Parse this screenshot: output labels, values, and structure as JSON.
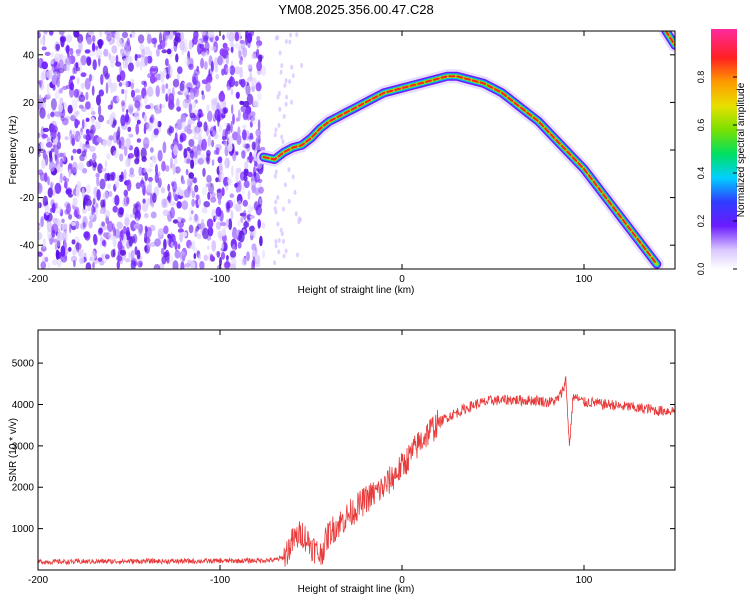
{
  "title": "YM08.2025.356.00.47.C28",
  "chart_data": [
    {
      "type": "heatmap",
      "xlabel": "Height of straight line (km)",
      "ylabel": "Frequency (Hz)",
      "xlim": [
        -200,
        150
      ],
      "ylim": [
        -50,
        50
      ],
      "x_ticks": [
        -200,
        -100,
        0,
        100
      ],
      "y_ticks": [
        -40,
        -20,
        0,
        20,
        40
      ],
      "colorbar": {
        "label": "Normalized spectral amplitude",
        "range": [
          0,
          1
        ],
        "ticks": [
          0.0,
          0.2,
          0.4,
          0.6,
          0.8
        ]
      },
      "noise_region_x": [
        -200,
        -76
      ],
      "ridge": {
        "name": "",
        "x": [
          -76,
          -70,
          -65,
          -60,
          -55,
          -50,
          -45,
          -40,
          -35,
          -30,
          -25,
          -20,
          -15,
          -10,
          -5,
          0,
          5,
          10,
          15,
          20,
          25,
          30,
          35,
          40,
          45,
          50,
          55,
          60,
          65,
          70,
          75,
          80,
          85,
          90,
          95,
          100,
          105,
          110,
          115,
          120,
          125,
          130,
          135,
          140,
          145,
          150
        ],
        "y": [
          -3,
          -4,
          -1,
          1,
          2,
          5,
          9,
          12,
          14,
          16,
          18,
          20,
          22,
          24,
          25,
          26,
          27,
          28,
          29,
          30,
          31,
          31,
          30,
          29,
          28,
          26,
          24,
          21,
          18,
          15,
          12,
          8,
          4,
          0,
          -4,
          -8,
          -13,
          -18,
          -23,
          -28,
          -33,
          -38,
          -43,
          -48,
          50,
          44
        ]
      }
    },
    {
      "type": "line",
      "xlabel": "Height of straight line (km)",
      "ylabel": "SNR (10 * v/v)",
      "xlim": [
        -200,
        150
      ],
      "ylim": [
        0,
        5800
      ],
      "x_ticks": [
        -200,
        -100,
        0,
        100
      ],
      "y_ticks": [
        1000,
        2000,
        3000,
        4000,
        5000
      ],
      "color": "#e83a3a",
      "series": [
        {
          "x": [
            -200,
            -190,
            -180,
            -170,
            -160,
            -150,
            -140,
            -130,
            -120,
            -110,
            -100,
            -90,
            -80,
            -70,
            -65,
            -60,
            -55,
            -50,
            -45,
            -40,
            -35,
            -30,
            -25,
            -20,
            -15,
            -10,
            -5,
            0,
            5,
            10,
            15,
            20,
            25,
            30,
            35,
            40,
            45,
            50,
            55,
            60,
            65,
            70,
            75,
            80,
            85,
            88,
            90,
            92,
            94,
            96,
            100,
            105,
            110,
            115,
            120,
            125,
            130,
            135,
            140,
            145,
            150
          ],
          "y": [
            200,
            200,
            200,
            205,
            210,
            210,
            215,
            210,
            215,
            215,
            220,
            220,
            230,
            240,
            300,
            700,
            900,
            600,
            350,
            900,
            1100,
            1300,
            1500,
            1700,
            1850,
            2000,
            2250,
            2500,
            2800,
            3100,
            3350,
            3550,
            3700,
            3800,
            3900,
            4000,
            4050,
            4100,
            4100,
            4120,
            4100,
            4100,
            4100,
            4050,
            4100,
            4300,
            4600,
            3000,
            4200,
            4150,
            4050,
            4050,
            4000,
            4000,
            3950,
            3950,
            3900,
            3900,
            3850,
            3850,
            3850
          ]
        }
      ]
    }
  ]
}
